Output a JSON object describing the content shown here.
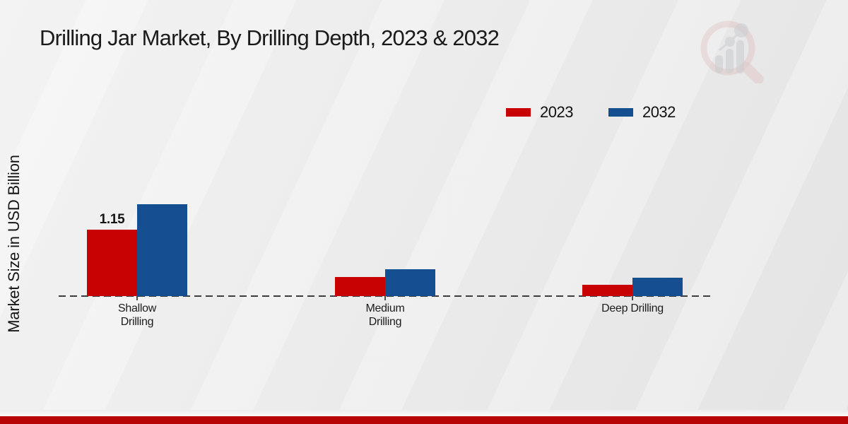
{
  "title": "Drilling Jar Market, By Drilling Depth, 2023 & 2032",
  "y_axis_label": "Market Size in USD Billion",
  "legend": {
    "position": "top-right",
    "items": [
      {
        "label": "2023",
        "color": "#c80202"
      },
      {
        "label": "2032",
        "color": "#154f92"
      }
    ]
  },
  "chart_data": {
    "type": "bar",
    "title": "Drilling Jar Market, By Drilling Depth, 2023 & 2032",
    "xlabel": "",
    "ylabel": "Market Size in USD Billion",
    "categories": [
      "Shallow Drilling",
      "Medium Drilling",
      "Deep Drilling"
    ],
    "series": [
      {
        "name": "2023",
        "color": "#c80202",
        "values": [
          1.15,
          0.33,
          0.2
        ]
      },
      {
        "name": "2032",
        "color": "#154f92",
        "values": [
          1.59,
          0.47,
          0.32
        ]
      }
    ],
    "bar_labels": [
      {
        "series": "2023",
        "category_index": 0,
        "text": "1.15"
      }
    ],
    "ylim": [
      0,
      1.8
    ],
    "grid": false,
    "baseline_style": "dashed",
    "legend_position": "top-right"
  },
  "branding": {
    "logo_icon": "magnifier-bar-chart-watermark",
    "footer_bar_color": "#b70505"
  }
}
